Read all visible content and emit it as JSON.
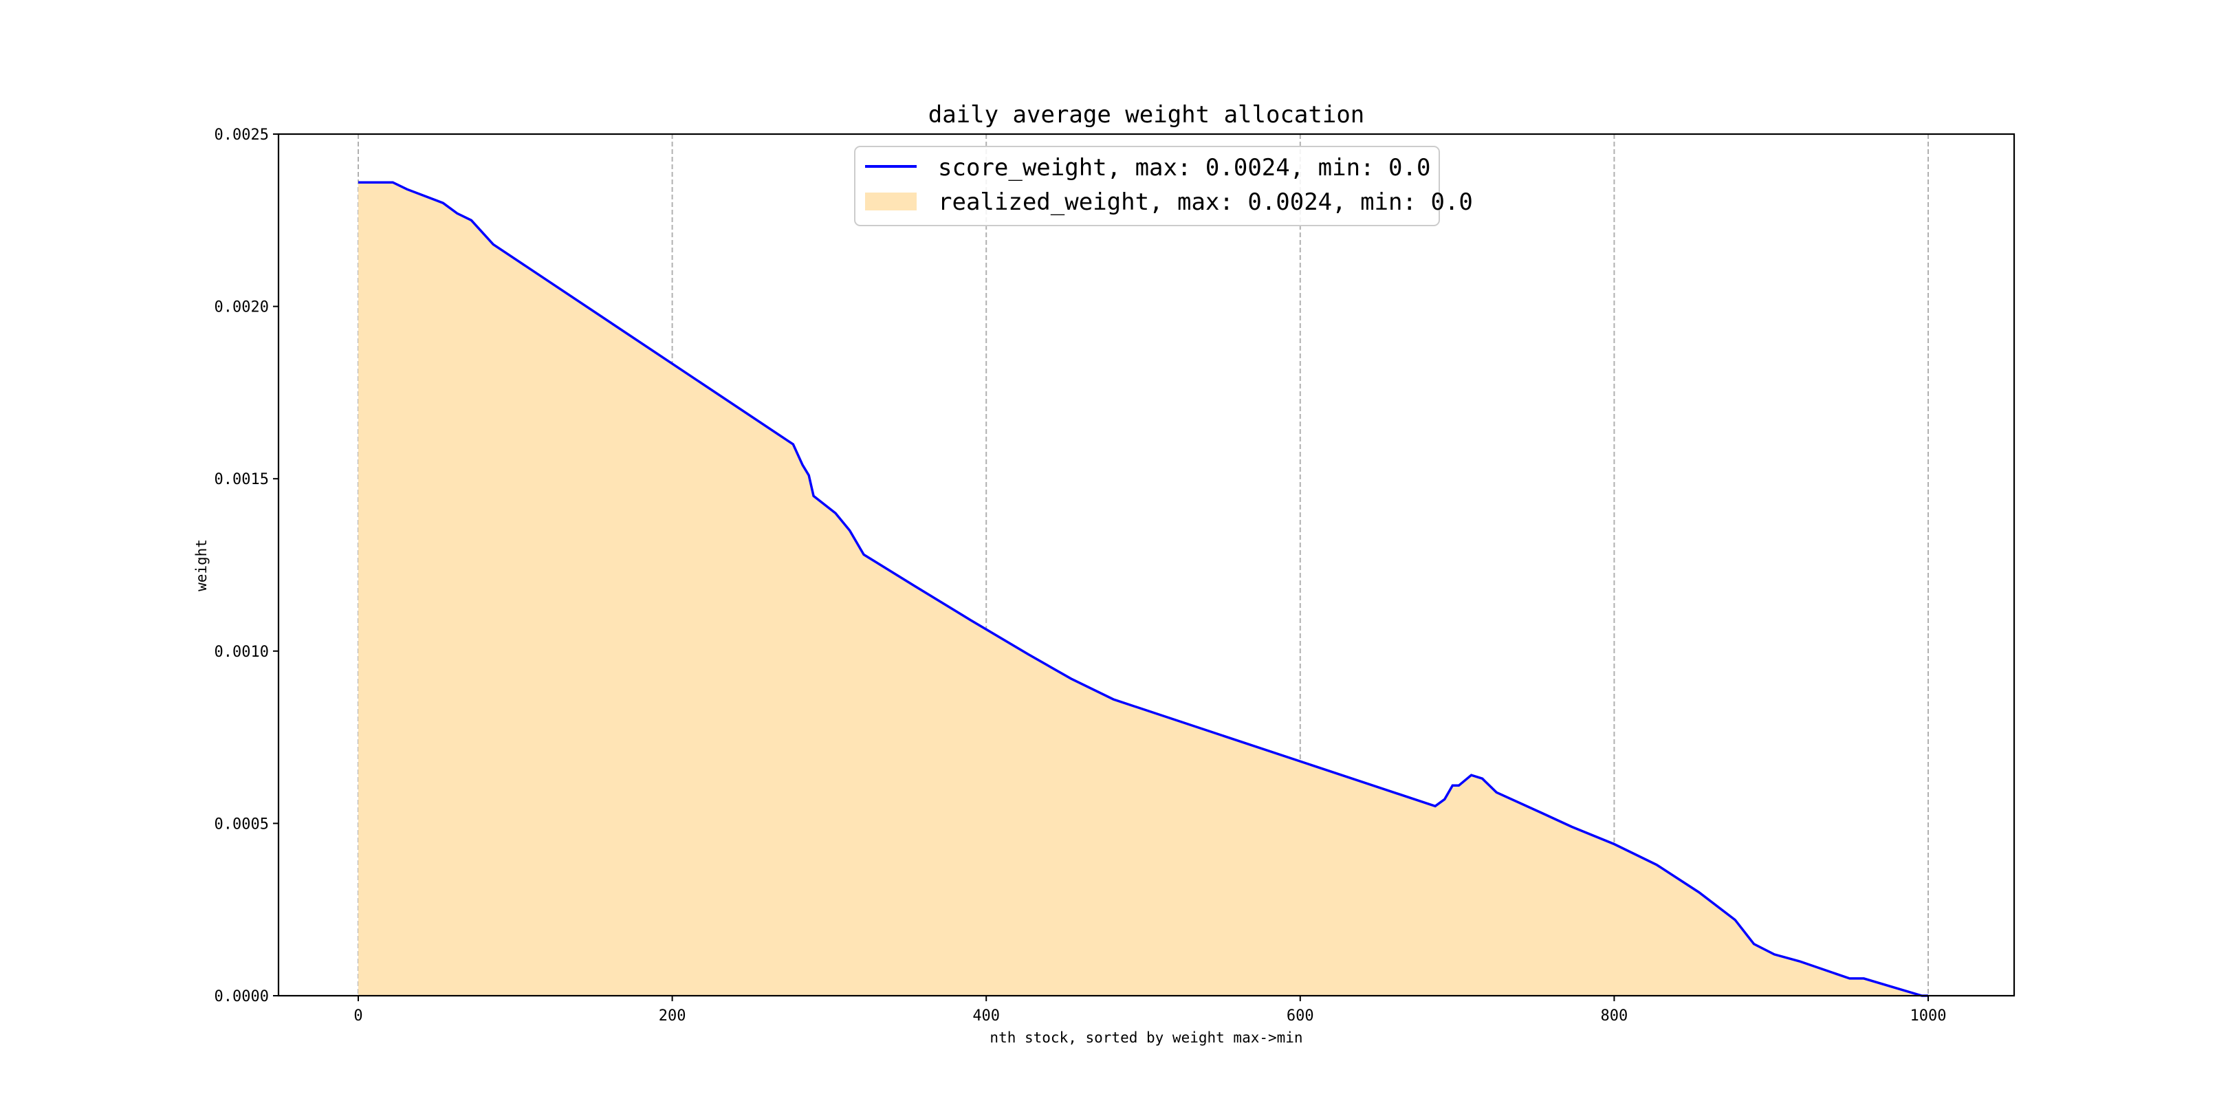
{
  "chart_data": {
    "type": "area",
    "title": "daily average weight allocation",
    "xlabel": "nth stock, sorted by weight max->min",
    "ylabel": "weight",
    "xlim": [
      -50,
      1055
    ],
    "ylim": [
      0,
      0.0025
    ],
    "xticks": [
      0,
      200,
      400,
      600,
      800,
      1000
    ],
    "xtick_labels": [
      "0",
      "200",
      "400",
      "600",
      "800",
      "1000"
    ],
    "yticks": [
      0,
      0.0005,
      0.001,
      0.0015,
      0.002,
      0.0025
    ],
    "ytick_labels": [
      "0.0000",
      "0.0005",
      "0.0010",
      "0.0015",
      "0.0020",
      "0.0025"
    ],
    "grid": "vertical dashed",
    "legend_position": "top-center",
    "series": [
      {
        "name": "score_weight, max: 0.0024, min: 0.0",
        "kind": "line",
        "color": "#0000ff"
      },
      {
        "name": "realized_weight, max: 0.0024, min: 0.0",
        "kind": "fill",
        "color": "#ffe4b5"
      }
    ],
    "x": [
      0,
      22,
      31,
      54,
      63,
      72,
      86,
      277,
      283,
      287,
      290,
      304,
      313,
      322,
      354,
      390,
      427,
      454,
      481,
      686,
      692,
      697,
      701,
      709,
      716,
      725,
      754,
      773,
      800,
      827,
      854,
      877,
      889,
      902,
      918,
      950,
      959,
      996,
      1000
    ],
    "y": [
      0.00236,
      0.00236,
      0.00234,
      0.0023,
      0.00227,
      0.00225,
      0.00218,
      0.0016,
      0.00154,
      0.00151,
      0.00145,
      0.0014,
      0.00135,
      0.00128,
      0.00119,
      0.00109,
      0.00099,
      0.00092,
      0.00086,
      0.00055,
      0.00057,
      0.00061,
      0.00061,
      0.00064,
      0.00063,
      0.00059,
      0.00053,
      0.00049,
      0.00044,
      0.00038,
      0.0003,
      0.00022,
      0.00015,
      0.00012,
      0.0001,
      5e-05,
      5e-05,
      0.0,
      0.0
    ]
  }
}
